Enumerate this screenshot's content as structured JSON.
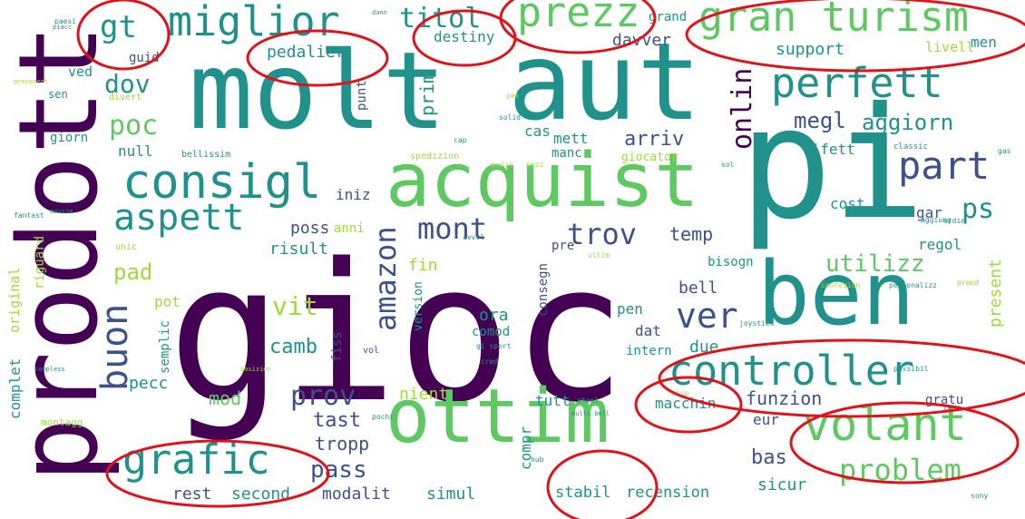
{
  "palette": {
    "purple": "#440154",
    "indigo": "#3b528b",
    "teal": "#21918c",
    "green": "#5ec962",
    "lime": "#a0da39",
    "yellow": "#fde725",
    "ring": "#e0121b"
  },
  "words": [
    {
      "text": "gioc",
      "color": "purple"
    },
    {
      "text": "pi",
      "color": "teal"
    },
    {
      "text": "molt",
      "color": "teal"
    },
    {
      "text": "aut",
      "color": "teal"
    },
    {
      "text": "prodott",
      "color": "purple"
    },
    {
      "text": "acquist",
      "color": "green"
    },
    {
      "text": "ottim",
      "color": "green"
    },
    {
      "text": "ben",
      "color": "teal"
    },
    {
      "text": "controller",
      "color": "teal"
    },
    {
      "text": "volant",
      "color": "green"
    },
    {
      "text": "grafic",
      "color": "teal"
    },
    {
      "text": "consigl",
      "color": "teal"
    },
    {
      "text": "gran turism",
      "color": "green"
    },
    {
      "text": "miglior",
      "color": "teal"
    },
    {
      "text": "prezz",
      "color": "green"
    },
    {
      "text": "perfett",
      "color": "teal"
    },
    {
      "text": "ver",
      "color": "indigo"
    },
    {
      "text": "part",
      "color": "indigo"
    },
    {
      "text": "aspett",
      "color": "teal"
    },
    {
      "text": "buon",
      "color": "indigo"
    },
    {
      "text": "problem",
      "color": "green"
    },
    {
      "text": "amazon",
      "color": "indigo"
    },
    {
      "text": "mont",
      "color": "indigo"
    },
    {
      "text": "trov",
      "color": "indigo"
    },
    {
      "text": "prov",
      "color": "indigo"
    },
    {
      "text": "gt",
      "color": "teal"
    },
    {
      "text": "titol",
      "color": "teal"
    },
    {
      "text": "dov",
      "color": "teal"
    },
    {
      "text": "poc",
      "color": "green"
    },
    {
      "text": "onlin",
      "color": "purple"
    },
    {
      "text": "megl",
      "color": "indigo"
    },
    {
      "text": "aggiorn",
      "color": "teal"
    },
    {
      "text": "ps",
      "color": "teal"
    },
    {
      "text": "utilizz",
      "color": "green"
    },
    {
      "text": "tast",
      "color": "indigo"
    },
    {
      "text": "pass",
      "color": "indigo"
    },
    {
      "text": "camb",
      "color": "teal"
    },
    {
      "text": "vit",
      "color": "lime"
    },
    {
      "text": "mod",
      "color": "green"
    },
    {
      "text": "pedalier",
      "color": "teal"
    },
    {
      "text": "destiny",
      "color": "teal"
    },
    {
      "text": "support",
      "color": "teal"
    },
    {
      "text": "davver",
      "color": "indigo"
    },
    {
      "text": "arriv",
      "color": "indigo"
    },
    {
      "text": "prim",
      "color": "teal"
    },
    {
      "text": "cas",
      "color": "teal"
    },
    {
      "text": "mett",
      "color": "teal"
    },
    {
      "text": "temp",
      "color": "indigo"
    },
    {
      "text": "pad",
      "color": "lime"
    },
    {
      "text": "poss",
      "color": "indigo"
    },
    {
      "text": "risult",
      "color": "teal"
    },
    {
      "text": "iniz",
      "color": "indigo"
    },
    {
      "text": "fin",
      "color": "lime"
    },
    {
      "text": "ora",
      "color": "teal"
    },
    {
      "text": "bell",
      "color": "indigo"
    },
    {
      "text": "pen",
      "color": "teal"
    },
    {
      "text": "dat",
      "color": "indigo"
    },
    {
      "text": "due",
      "color": "teal"
    },
    {
      "text": "intern",
      "color": "teal"
    },
    {
      "text": "tropp",
      "color": "indigo"
    },
    {
      "text": "rest",
      "color": "indigo"
    },
    {
      "text": "second",
      "color": "teal"
    },
    {
      "text": "modalit",
      "color": "indigo"
    },
    {
      "text": "simul",
      "color": "teal"
    },
    {
      "text": "stabil",
      "color": "teal"
    },
    {
      "text": "recension",
      "color": "teal"
    },
    {
      "text": "sicur",
      "color": "teal"
    },
    {
      "text": "bas",
      "color": "indigo"
    },
    {
      "text": "eur",
      "color": "indigo"
    },
    {
      "text": "funzion",
      "color": "indigo"
    },
    {
      "text": "macchin",
      "color": "teal"
    },
    {
      "text": "nient",
      "color": "lime"
    },
    {
      "text": "tutt",
      "color": "teal"
    },
    {
      "text": "compr",
      "color": "teal"
    },
    {
      "text": "pecc",
      "color": "teal"
    },
    {
      "text": "complet",
      "color": "teal"
    },
    {
      "text": "null",
      "color": "teal"
    },
    {
      "text": "giorn",
      "color": "teal"
    },
    {
      "text": "ved",
      "color": "teal"
    },
    {
      "text": "guid",
      "color": "indigo"
    },
    {
      "text": "difett",
      "color": "teal"
    },
    {
      "text": "cost",
      "color": "teal"
    },
    {
      "text": "gar",
      "color": "indigo"
    },
    {
      "text": "regol",
      "color": "teal"
    },
    {
      "text": "bisogn",
      "color": "teal"
    },
    {
      "text": "present",
      "color": "lime"
    },
    {
      "text": "livell",
      "color": "lime"
    },
    {
      "text": "grand",
      "color": "teal"
    },
    {
      "text": "punt",
      "color": "indigo"
    },
    {
      "text": "manc",
      "color": "teal"
    },
    {
      "text": "giocator",
      "color": "lime"
    },
    {
      "text": "anni",
      "color": "lime"
    },
    {
      "text": "riguard",
      "color": "lime"
    },
    {
      "text": "original",
      "color": "lime"
    },
    {
      "text": "semplic",
      "color": "teal"
    },
    {
      "text": "pot",
      "color": "lime"
    },
    {
      "text": "version",
      "color": "teal"
    },
    {
      "text": "fiss",
      "color": "indigo"
    },
    {
      "text": "comod",
      "color": "teal"
    },
    {
      "text": "consegn",
      "color": "indigo"
    },
    {
      "text": "pre",
      "color": "indigo"
    },
    {
      "text": "gratu",
      "color": "indigo"
    },
    {
      "text": "men",
      "color": "teal"
    },
    {
      "text": "sen",
      "color": "teal"
    },
    {
      "text": "divert",
      "color": "lime"
    },
    {
      "text": "unic",
      "color": "lime"
    },
    {
      "text": "montagg",
      "color": "lime"
    },
    {
      "text": "bellissim",
      "color": "teal"
    },
    {
      "text": "spedizion",
      "color": "lime"
    },
    {
      "text": "classic",
      "color": "teal"
    },
    {
      "text": "personalizz",
      "color": "teal"
    },
    {
      "text": "possibil",
      "color": "teal"
    },
    {
      "text": "joystick",
      "color": "teal"
    },
    {
      "text": "avvol",
      "color": "teal"
    },
    {
      "text": "ultim",
      "color": "lime"
    },
    {
      "text": "vol",
      "color": "indigo"
    },
    {
      "text": "cred",
      "color": "teal"
    },
    {
      "text": "posizion",
      "color": "lime"
    },
    {
      "text": "precedent",
      "color": "lime"
    },
    {
      "text": "fantast",
      "color": "teal"
    },
    {
      "text": "sony",
      "color": "teal"
    },
    {
      "text": "gi sport",
      "color": "teal"
    },
    {
      "text": "steel",
      "color": "teal"
    },
    {
      "text": "multi bell",
      "color": "teal"
    },
    {
      "text": "hub",
      "color": "teal"
    },
    {
      "text": "compless",
      "color": "teal"
    },
    {
      "text": "paesi",
      "color": "teal"
    },
    {
      "text": "qualit",
      "color": "lime"
    },
    {
      "text": "solid",
      "color": "teal"
    },
    {
      "text": "massim",
      "color": "teal"
    },
    {
      "text": "piacc",
      "color": "teal"
    },
    {
      "text": "dann",
      "color": "teal"
    },
    {
      "text": "cap",
      "color": "teal"
    },
    {
      "text": "pes",
      "color": "lime"
    },
    {
      "text": "gas",
      "color": "teal"
    },
    {
      "text": "sol",
      "color": "teal"
    },
    {
      "text": "risp",
      "color": "lime"
    },
    {
      "text": "aggiung",
      "color": "teal"
    },
    {
      "text": "confezion",
      "color": "lime"
    },
    {
      "text": "prend",
      "color": "lime"
    },
    {
      "text": "cerc",
      "color": "teal"
    },
    {
      "text": "ordin",
      "color": "teal"
    },
    {
      "text": "pochi",
      "color": "teal"
    },
    {
      "text": "pezz",
      "color": "lime"
    }
  ]
}
